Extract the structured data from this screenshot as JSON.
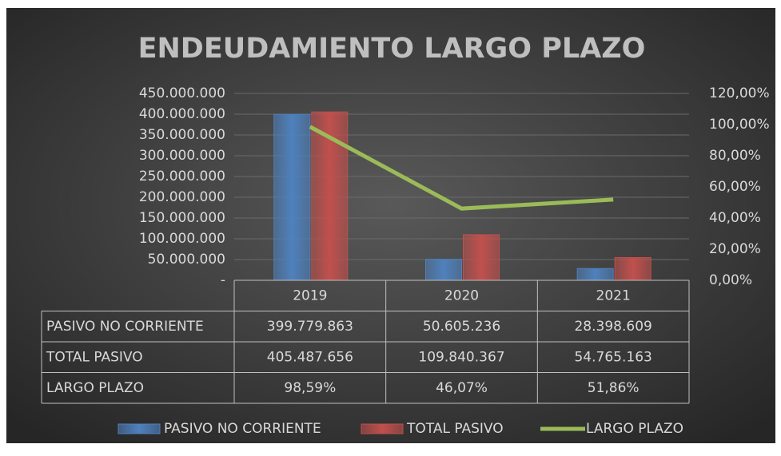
{
  "chart_data": {
    "type": "bar",
    "title": "ENDEUDAMIENTO LARGO PLAZO",
    "categories": [
      "2019",
      "2020",
      "2021"
    ],
    "series": [
      {
        "name": "PASIVO NO CORRIENTE",
        "type": "bar",
        "color": "#4f81bd",
        "values": [
          399779863,
          50605236,
          28398609
        ],
        "value_labels": [
          "399.779.863",
          "50.605.236",
          "28.398.609"
        ]
      },
      {
        "name": "TOTAL PASIVO",
        "type": "bar",
        "color": "#c0504d",
        "values": [
          405487656,
          109840367,
          54765163
        ],
        "value_labels": [
          "405.487.656",
          "109.840.367",
          "54.765.163"
        ]
      },
      {
        "name": "LARGO PLAZO",
        "type": "line",
        "axis": "y2",
        "color": "#9bbb59",
        "values": [
          98.59,
          46.07,
          51.86
        ],
        "value_labels": [
          "98,59%",
          "46,07%",
          "51,86%"
        ]
      }
    ],
    "ylim": [
      0,
      450000000
    ],
    "yticks": [
      {
        "value": 0,
        "label": "-"
      },
      {
        "value": 50000000,
        "label": "50.000.000"
      },
      {
        "value": 100000000,
        "label": "100.000.000"
      },
      {
        "value": 150000000,
        "label": "150.000.000"
      },
      {
        "value": 200000000,
        "label": "200.000.000"
      },
      {
        "value": 250000000,
        "label": "250.000.000"
      },
      {
        "value": 300000000,
        "label": "300.000.000"
      },
      {
        "value": 350000000,
        "label": "350.000.000"
      },
      {
        "value": 400000000,
        "label": "400.000.000"
      },
      {
        "value": 450000000,
        "label": "450.000.000"
      }
    ],
    "y2lim": [
      0,
      120
    ],
    "y2ticks": [
      {
        "value": 0,
        "label": "0,00%"
      },
      {
        "value": 20,
        "label": "20,00%"
      },
      {
        "value": 40,
        "label": "40,00%"
      },
      {
        "value": 60,
        "label": "60,00%"
      },
      {
        "value": 80,
        "label": "80,00%"
      },
      {
        "value": 100,
        "label": "100,00%"
      },
      {
        "value": 120,
        "label": "120,00%"
      }
    ],
    "grid": true,
    "legend": "bottom",
    "data_table": true
  }
}
